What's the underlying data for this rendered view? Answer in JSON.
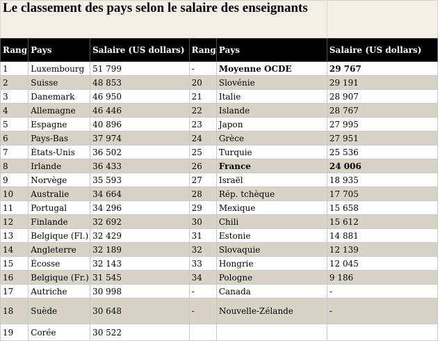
{
  "title": "Le classement des pays selon le salaire des enseignants",
  "headers": [
    "Rang",
    "Pays",
    "Salaire (US dollars)",
    "Rang",
    "Pays",
    "Salaire (US dollars)"
  ],
  "rows": [
    {
      "l": [
        "1",
        "Luxembourg",
        "51 799"
      ],
      "r": [
        "-",
        "Moyenne OCDE",
        "29 767"
      ],
      "bold": true
    },
    {
      "l": [
        "2",
        "Suisse",
        "48 853"
      ],
      "r": [
        "20",
        "Slovénie",
        "29 191"
      ]
    },
    {
      "l": [
        "3",
        "Danemark",
        "46 950"
      ],
      "r": [
        "21",
        "Italie",
        "28 907"
      ]
    },
    {
      "l": [
        "4",
        "Allemagne",
        "46 446"
      ],
      "r": [
        "22",
        "Islande",
        "28 767"
      ]
    },
    {
      "l": [
        "5",
        "Espagne",
        "40 896"
      ],
      "r": [
        "23",
        "Japon",
        "27 995"
      ]
    },
    {
      "l": [
        "6",
        "Pays-Bas",
        "37 974"
      ],
      "r": [
        "24",
        "Grèce",
        "27 951"
      ]
    },
    {
      "l": [
        "7",
        "États-Unis",
        "36 502"
      ],
      "r": [
        "25",
        "Turquie",
        "25 536"
      ]
    },
    {
      "l": [
        "8",
        "Irlande",
        "36 433"
      ],
      "r": [
        "26",
        "France",
        "24 006"
      ],
      "bold": true
    },
    {
      "l": [
        "9",
        "Norvège",
        "35 593"
      ],
      "r": [
        "27",
        "Israël",
        "18 935"
      ]
    },
    {
      "l": [
        "10",
        "Australie",
        "34 664"
      ],
      "r": [
        "28",
        "Rép. tchèque",
        "17 705"
      ]
    },
    {
      "l": [
        "11",
        "Portugal",
        "34 296"
      ],
      "r": [
        "29",
        "Mexique",
        "15 658"
      ]
    },
    {
      "l": [
        "12",
        "Finlande",
        "32 692"
      ],
      "r": [
        "30",
        "Chili",
        "15 612"
      ]
    },
    {
      "l": [
        "13",
        "Belgique (Fl.)",
        "32 429"
      ],
      "r": [
        "31",
        "Estonie",
        "14 881"
      ]
    },
    {
      "l": [
        "14",
        "Angleterre",
        "32 189"
      ],
      "r": [
        "32",
        "Slovaquie",
        "12 139"
      ]
    },
    {
      "l": [
        "15",
        "Écosse",
        "32 143"
      ],
      "r": [
        "33",
        "Hongrie",
        "12 045"
      ]
    },
    {
      "l": [
        "16",
        "Belgique (Fr.)",
        "31 545"
      ],
      "r": [
        "34",
        "Pologne",
        "9 186"
      ]
    },
    {
      "l": [
        "17",
        "Autriche",
        "30 998"
      ],
      "r": [
        "-",
        "Canada",
        "-"
      ]
    },
    {
      "l": [
        "18",
        "Suède",
        "30 648"
      ],
      "r": [
        "-",
        "Nouvelle-Zélande",
        "-"
      ]
    },
    {
      "l": [
        "19",
        "Corée",
        "30 522"
      ],
      "r": [
        "",
        "",
        ""
      ]
    }
  ]
}
